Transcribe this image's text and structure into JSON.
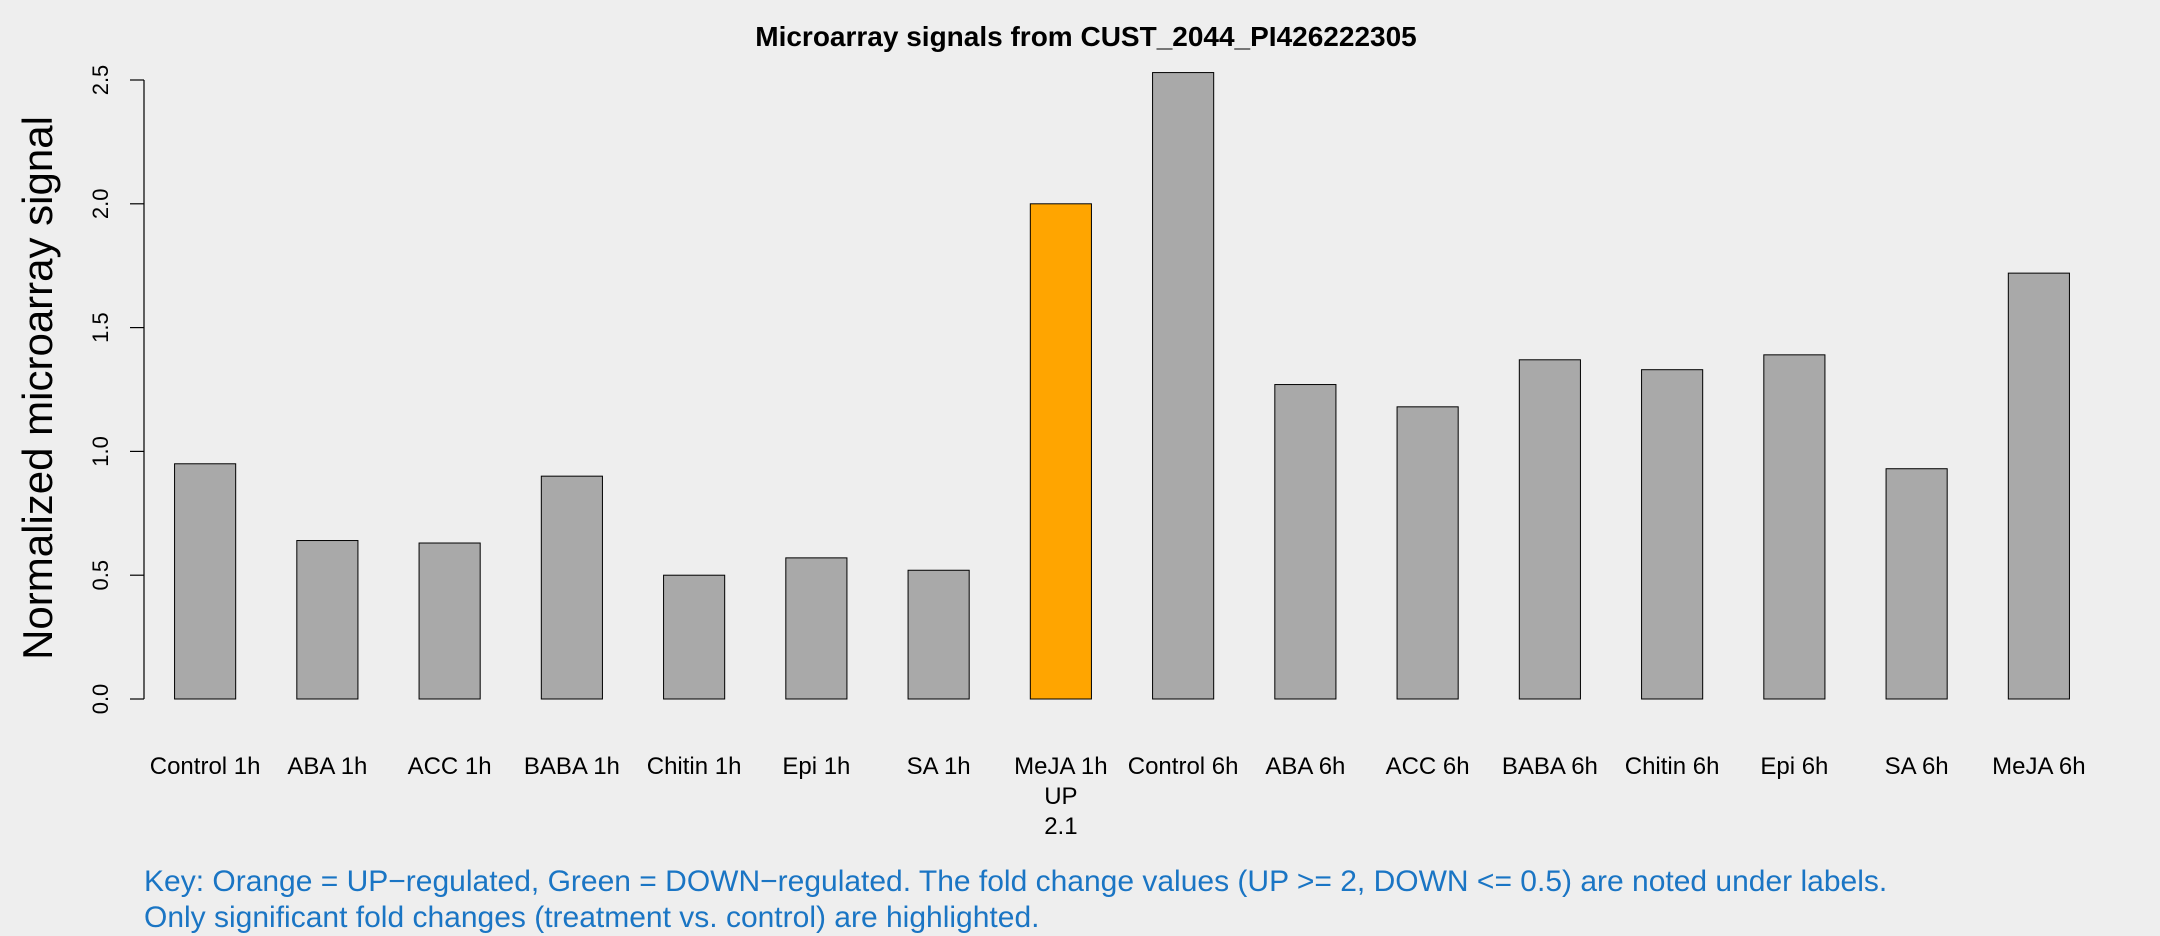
{
  "chart_data": {
    "type": "bar",
    "title": "Microarray signals from CUST_2044_PI426222305",
    "xlabel": "",
    "ylabel": "Normalized microarray signal",
    "ylim": [
      0,
      2.5
    ],
    "yticks": [
      "0.0",
      "0.5",
      "1.0",
      "1.5",
      "2.0",
      "2.5"
    ],
    "categories": [
      "Control 1h",
      "ABA 1h",
      "ACC 1h",
      "BABA 1h",
      "Chitin 1h",
      "Epi 1h",
      "SA 1h",
      "MeJA 1h",
      "Control 6h",
      "ABA 6h",
      "ACC 6h",
      "BABA 6h",
      "Chitin 6h",
      "Epi 6h",
      "SA 6h",
      "MeJA 6h"
    ],
    "values": [
      0.95,
      0.64,
      0.63,
      0.9,
      0.5,
      0.57,
      0.52,
      2.0,
      2.53,
      1.27,
      1.18,
      1.37,
      1.33,
      1.39,
      0.93,
      1.72
    ],
    "bar_colors": [
      "#a9a9a9",
      "#a9a9a9",
      "#a9a9a9",
      "#a9a9a9",
      "#a9a9a9",
      "#a9a9a9",
      "#a9a9a9",
      "#ffa500",
      "#a9a9a9",
      "#a9a9a9",
      "#a9a9a9",
      "#a9a9a9",
      "#a9a9a9",
      "#a9a9a9",
      "#a9a9a9",
      "#a9a9a9"
    ],
    "annotations": [
      {
        "category": "MeJA 1h",
        "lines": [
          "UP",
          "2.1"
        ]
      }
    ]
  },
  "key": {
    "line1": "Key: Orange = UP−regulated, Green = DOWN−regulated. The fold change values (UP >= 2, DOWN <= 0.5) are noted under labels.",
    "line2": "Only significant fold changes (treatment vs. control) are highlighted."
  },
  "colors": {
    "background": "#eeeeee",
    "bar_default": "#a9a9a9",
    "bar_up": "#ffa500",
    "key_text": "#1a75c4"
  }
}
